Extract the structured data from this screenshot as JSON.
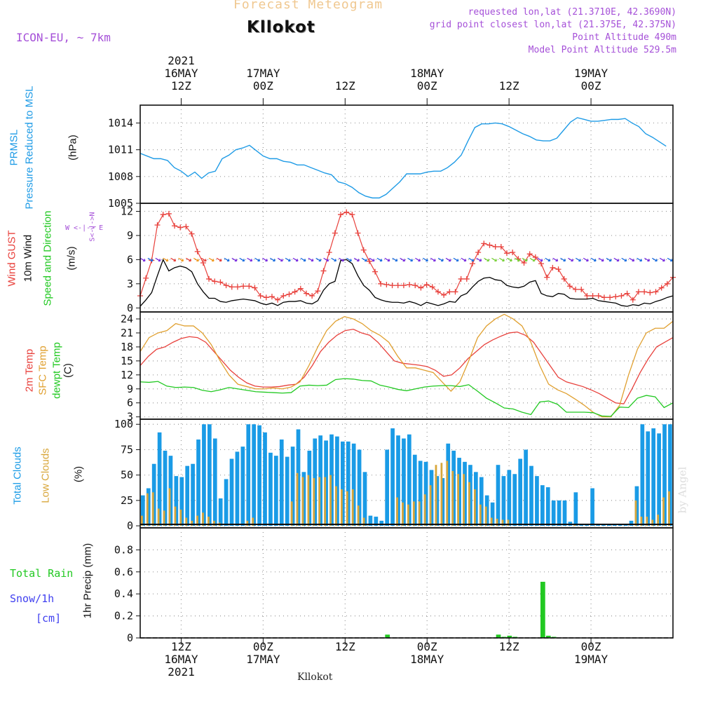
{
  "header": {
    "faded_title": "Forecast Meteogram",
    "location": "Kllokot",
    "model": "ICON-EU, ~ 7km",
    "requested": "requested lon,lat (21.3710E, 42.3690N)",
    "grid_point": "grid point closest lon,lat (21.375E, 42.375N)",
    "point_alt": "Point Altitude 490m",
    "model_alt": "Model Point Altitude 529.5m",
    "footer_location": "Kllokot",
    "watermark": "by Angel"
  },
  "side_labels": {
    "prmsl": "PRMSL",
    "pressure": "Pressure Reduced to MSL",
    "hpa": "(hPa)",
    "gust": "Wind GUST",
    "wind10": "10m Wind",
    "speed_dir": "Speed and Direction",
    "ms": "(m/s)",
    "compass_ns": "S<-|->N",
    "compass_we": "W <-|-> E",
    "t2m": "2m Temp",
    "sfc": "SFC Temp",
    "dewpt": "dewpt Temp",
    "c": "(C)",
    "total_clouds": "Total Clouds",
    "low_clouds": "Low Clouds",
    "pct": "(%)",
    "total_rain": "Total  Rain",
    "snow": "Snow/1h",
    "cm": "[cm]",
    "precip_unit": "1hr Precip (mm)"
  },
  "time_axis": {
    "top_labels": [
      {
        "hour": 12,
        "lines": [
          "2021",
          "16MAY",
          "12Z"
        ]
      },
      {
        "hour": 24,
        "lines": [
          "17MAY",
          "00Z"
        ]
      },
      {
        "hour": 36,
        "lines": [
          "12Z"
        ]
      },
      {
        "hour": 48,
        "lines": [
          "18MAY",
          "00Z"
        ]
      },
      {
        "hour": 60,
        "lines": [
          "12Z"
        ]
      },
      {
        "hour": 72,
        "lines": [
          "19MAY",
          "00Z"
        ]
      }
    ],
    "bottom_labels": [
      {
        "hour": 12,
        "lines": [
          "12Z",
          "16MAY",
          "2021"
        ]
      },
      {
        "hour": 24,
        "lines": [
          "00Z",
          "17MAY"
        ]
      },
      {
        "hour": 36,
        "lines": [
          "12Z"
        ]
      },
      {
        "hour": 48,
        "lines": [
          "00Z",
          "18MAY"
        ]
      },
      {
        "hour": 60,
        "lines": [
          "12Z"
        ]
      },
      {
        "hour": 72,
        "lines": [
          "00Z",
          "19MAY"
        ]
      }
    ]
  },
  "colors": {
    "pressure": "#1e9be6",
    "gust": "#e8413c",
    "wind": "#000000",
    "t2m": "#e8413c",
    "sfc": "#e0a030",
    "dewpt": "#22c922",
    "total_clouds": "#1a9be6",
    "low_clouds": "#d8a63a",
    "rain": "#22c922",
    "label_purple": "#a550d8",
    "label_orange": "#f0c890",
    "snow_label": "#4040f0"
  },
  "chart_data": [
    {
      "type": "line",
      "title": "",
      "ylabel": "PRMSL Pressure Reduced to MSL (hPa)",
      "ylim": [
        1005,
        1016
      ],
      "yticks": [
        1005,
        1008,
        1011,
        1014
      ],
      "hours_start": 6,
      "series": [
        {
          "name": "PRMSL",
          "values": [
            1010.6,
            1010.3,
            1010.0,
            1010.0,
            1009.8,
            1009.0,
            1008.6,
            1008.0,
            1008.5,
            1007.8,
            1008.4,
            1008.6,
            1010.0,
            1010.4,
            1011.0,
            1011.2,
            1011.5,
            1010.9,
            1010.3,
            1010.0,
            1010.0,
            1009.7,
            1009.6,
            1009.3,
            1009.3,
            1009.0,
            1008.7,
            1008.4,
            1008.2,
            1007.4,
            1007.2,
            1006.8,
            1006.2,
            1005.8,
            1005.6,
            1005.6,
            1006.0,
            1006.7,
            1007.4,
            1008.3,
            1008.3,
            1008.3,
            1008.5,
            1008.6,
            1008.6,
            1009.0,
            1009.6,
            1010.4,
            1012.0,
            1013.5,
            1013.9,
            1013.9,
            1014.0,
            1013.9,
            1013.6,
            1013.2,
            1012.8,
            1012.5,
            1012.1,
            1012.0,
            1012.0,
            1012.3,
            1013.2,
            1014.1,
            1014.6,
            1014.4,
            1014.2,
            1014.2,
            1014.3,
            1014.4,
            1014.4,
            1014.5,
            1014.0,
            1013.6,
            1012.8,
            1012.4,
            1011.9,
            1011.4
          ]
        }
      ]
    },
    {
      "type": "line",
      "title": "",
      "ylabel": "(m/s)",
      "ylim": [
        -0.5,
        13
      ],
      "yticks": [
        0,
        3,
        6,
        9,
        12
      ],
      "hours_start": 6,
      "direction_row_value": 6,
      "series": [
        {
          "name": "Wind GUST",
          "values": [
            1.5,
            3.7,
            5.9,
            10.3,
            11.6,
            11.7,
            10.2,
            10.0,
            10.1,
            9.2,
            7.0,
            5.6,
            3.6,
            3.3,
            3.2,
            2.8,
            2.6,
            2.6,
            2.7,
            2.7,
            2.5,
            1.5,
            1.3,
            1.4,
            1.0,
            1.5,
            1.7,
            2.0,
            2.4,
            1.8,
            1.5,
            2.1,
            4.6,
            6.9,
            9.3,
            11.6,
            11.9,
            11.6,
            9.3,
            7.2,
            5.8,
            4.5,
            3.0,
            2.9,
            2.8,
            2.8,
            2.8,
            2.9,
            2.8,
            2.5,
            2.9,
            2.6,
            2.0,
            1.6,
            2.0,
            2.0,
            3.6,
            3.6,
            5.5,
            6.9,
            8.0,
            7.8,
            7.6,
            7.6,
            6.8,
            6.9,
            6.1,
            5.6,
            6.7,
            6.3,
            5.5,
            3.8,
            5.0,
            4.8,
            3.6,
            2.7,
            2.3,
            2.3,
            1.5,
            1.5,
            1.5,
            1.3,
            1.3,
            1.4,
            1.5,
            1.8,
            1.0,
            2.0,
            2.0,
            1.9,
            2.0,
            2.5,
            3.0,
            3.8
          ]
        },
        {
          "name": "10m Wind",
          "values": [
            0.2,
            1.0,
            1.9,
            4.0,
            6.0,
            4.6,
            5.0,
            5.2,
            5.0,
            4.5,
            3.0,
            2.0,
            1.2,
            1.2,
            0.8,
            0.7,
            0.9,
            1.0,
            1.1,
            1.0,
            0.9,
            0.6,
            0.4,
            0.6,
            0.3,
            0.7,
            0.8,
            0.8,
            0.9,
            0.6,
            0.5,
            0.9,
            2.2,
            3.0,
            3.3,
            5.9,
            6.0,
            5.5,
            4.0,
            2.8,
            2.2,
            1.3,
            1.0,
            0.8,
            0.7,
            0.7,
            0.6,
            0.8,
            0.6,
            0.3,
            0.7,
            0.5,
            0.3,
            0.5,
            0.8,
            0.7,
            1.5,
            1.8,
            2.6,
            3.3,
            3.7,
            3.8,
            3.5,
            3.4,
            2.8,
            2.6,
            2.5,
            2.7,
            3.2,
            3.4,
            1.8,
            1.5,
            1.4,
            1.8,
            1.7,
            1.2,
            1.1,
            1.1,
            1.1,
            1.2,
            0.9,
            0.8,
            0.7,
            0.6,
            0.3,
            0.2,
            0.4,
            0.3,
            0.6,
            0.5,
            0.8,
            1.0,
            1.3,
            1.5
          ]
        }
      ]
    },
    {
      "type": "line",
      "title": "",
      "ylabel": "(C)",
      "ylim": [
        2.5,
        25.5
      ],
      "yticks": [
        3,
        6,
        9,
        12,
        15,
        18,
        21,
        24
      ],
      "hours_start": 6,
      "series": [
        {
          "name": "2m Temp",
          "values": [
            14.0,
            16.0,
            17.5,
            18.0,
            19.0,
            19.8,
            20.2,
            20.0,
            19.0,
            17.0,
            15.0,
            13.0,
            11.5,
            10.3,
            9.6,
            9.4,
            9.4,
            9.5,
            9.8,
            10.0,
            11.5,
            14.0,
            17.0,
            19.0,
            20.5,
            21.5,
            21.8,
            21.0,
            20.5,
            19.0,
            17.0,
            15.0,
            14.5,
            14.3,
            14.1,
            13.8,
            13.0,
            11.7,
            12.0,
            13.5,
            15.5,
            17.0,
            18.5,
            19.5,
            20.3,
            21.0,
            21.2,
            20.5,
            19.0,
            16.5,
            14.0,
            11.5,
            10.5,
            10.0,
            9.5,
            8.8,
            8.0,
            7.0,
            6.0,
            5.8,
            9.0,
            12.5,
            15.5,
            18.0,
            19.0,
            20.0
          ]
        },
        {
          "name": "SFC Temp",
          "values": [
            17.0,
            20.0,
            21.0,
            21.5,
            23.0,
            22.5,
            22.5,
            21.0,
            18.5,
            15.0,
            12.0,
            10.0,
            9.5,
            9.0,
            9.0,
            9.2,
            9.0,
            9.4,
            10.5,
            14.0,
            18.0,
            21.5,
            23.5,
            24.5,
            24.0,
            23.0,
            21.5,
            20.5,
            19.0,
            16.0,
            13.5,
            13.5,
            13.0,
            12.5,
            10.5,
            8.5,
            10.5,
            15.0,
            20.0,
            22.5,
            24.0,
            25.0,
            24.0,
            22.5,
            19.0,
            14.0,
            10.0,
            8.8,
            8.0,
            6.8,
            5.5,
            4.0,
            3.0,
            3.0,
            5.5,
            12.0,
            17.5,
            21.0,
            22.0,
            22.0,
            23.5
          ]
        },
        {
          "name": "dewpt Temp",
          "values": [
            10.5,
            10.4,
            10.6,
            9.6,
            9.3,
            9.4,
            9.3,
            8.7,
            8.4,
            8.8,
            9.3,
            9.0,
            8.7,
            8.4,
            8.3,
            8.2,
            8.1,
            8.2,
            9.6,
            9.8,
            9.7,
            9.8,
            11.0,
            11.2,
            11.1,
            10.8,
            10.7,
            9.8,
            9.4,
            8.9,
            8.6,
            9.0,
            9.4,
            9.6,
            9.7,
            9.7,
            9.5,
            9.9,
            8.5,
            7.0,
            6.0,
            4.9,
            4.7,
            4.0,
            3.5,
            6.2,
            6.4,
            5.7,
            4.0,
            4.0,
            4.0,
            3.9,
            3.2,
            3.1,
            5.1,
            5.0,
            7.0,
            7.6,
            7.3,
            5.0,
            6.0
          ]
        }
      ]
    },
    {
      "type": "bar",
      "title": "",
      "ylabel": "(%)",
      "ylim": [
        -2,
        105
      ],
      "yticks": [
        0,
        25,
        50,
        75,
        100
      ],
      "hours_start": 6,
      "series": [
        {
          "name": "Total Clouds",
          "values": [
            30,
            37,
            61,
            92,
            74,
            69,
            49,
            48,
            59,
            61,
            85,
            100,
            100,
            86,
            27,
            46,
            66,
            73,
            78,
            100,
            100,
            99,
            92,
            72,
            69,
            85,
            68,
            78,
            95,
            53,
            74,
            86,
            89,
            84,
            90,
            88,
            83,
            83,
            81,
            75,
            53,
            10,
            9,
            5,
            75,
            96,
            89,
            86,
            90,
            70,
            64,
            63,
            55,
            49,
            47,
            81,
            74,
            67,
            63,
            60,
            53,
            48,
            30,
            23,
            60,
            49,
            55,
            51,
            66,
            75,
            59,
            49,
            40,
            38,
            25,
            25,
            25,
            4,
            33,
            0,
            0,
            37,
            0,
            1,
            0,
            0,
            0,
            0,
            5,
            39,
            100,
            93,
            96,
            91,
            100,
            100
          ]
        },
        {
          "name": "Low Clouds",
          "values": [
            10,
            32,
            33,
            17,
            15,
            37,
            19,
            16,
            8,
            5,
            10,
            13,
            9,
            5,
            3,
            0,
            0,
            0,
            0,
            5,
            8,
            0,
            0,
            0,
            0,
            0,
            0,
            24,
            52,
            48,
            50,
            47,
            48,
            48,
            50,
            39,
            36,
            34,
            36,
            20,
            8,
            0,
            0,
            0,
            0,
            0,
            28,
            23,
            21,
            24,
            24,
            31,
            40,
            60,
            62,
            64,
            54,
            51,
            51,
            43,
            36,
            21,
            19,
            8,
            7,
            6,
            6,
            0,
            0,
            0,
            0,
            0,
            0,
            0,
            0,
            0,
            0,
            0,
            1,
            0,
            0,
            0,
            0,
            0,
            0,
            0,
            0,
            0,
            0,
            25,
            9,
            9,
            6,
            11,
            28,
            34
          ]
        }
      ]
    },
    {
      "type": "bar",
      "title": "",
      "ylabel": "1hr Precip (mm)",
      "ylim": [
        0,
        1.0
      ],
      "yticks": [
        0,
        0.2,
        0.4,
        0.6,
        0.8
      ],
      "hours_start": 6,
      "series": [
        {
          "name": "Total Rain",
          "values": [
            0,
            0,
            0,
            0,
            0,
            0,
            0,
            0,
            0,
            0,
            0,
            0,
            0,
            0,
            0,
            0,
            0,
            0,
            0,
            0,
            0,
            0,
            0,
            0,
            0,
            0,
            0,
            0,
            0,
            0,
            0,
            0,
            0,
            0,
            0,
            0,
            0,
            0,
            0,
            0,
            0,
            0,
            0,
            0,
            0.03,
            0,
            0,
            0,
            0,
            0,
            0,
            0,
            0,
            0,
            0,
            0,
            0,
            0,
            0,
            0,
            0,
            0,
            0,
            0,
            0.03,
            0.01,
            0.02,
            0.01,
            0,
            0,
            0,
            0,
            0.51,
            0.02,
            0.01,
            0,
            0,
            0,
            0,
            0,
            0,
            0,
            0,
            0,
            0,
            0,
            0,
            0,
            0,
            0,
            0,
            0,
            0,
            0,
            0,
            0
          ]
        }
      ]
    }
  ]
}
